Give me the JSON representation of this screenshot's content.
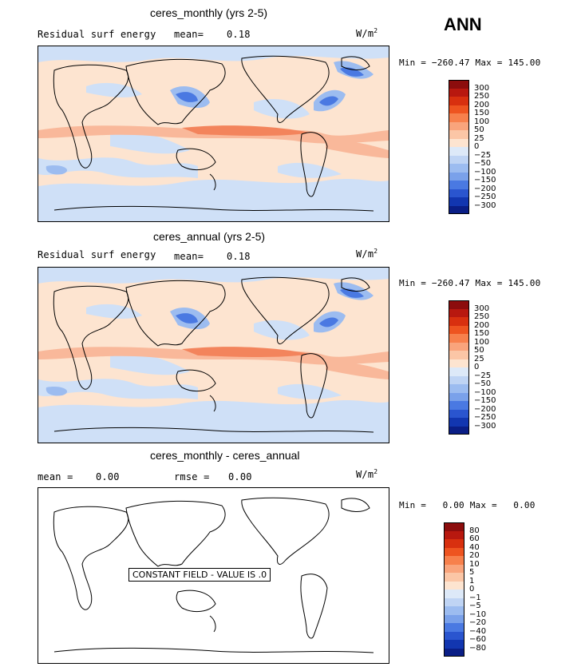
{
  "season": "ANN",
  "panels": [
    {
      "title": "ceres_monthly (yrs 2-5)",
      "left_label": "Residual surf energy",
      "mean_label": "mean=",
      "mean_value": "0.18",
      "units_base": "W/m",
      "units_exp": "2",
      "minmax": "Min = −260.47 Max = 145.00",
      "colorbar_labels": [
        "300",
        "250",
        "200",
        "150",
        "100",
        "50",
        "25",
        "0",
        "−25",
        "−50",
        "−100",
        "−150",
        "−200",
        "−250",
        "−300"
      ],
      "colorbar_colors": [
        "#8c0d0d",
        "#b8180f",
        "#d8300f",
        "#ee5420",
        "#f7804c",
        "#f9a47c",
        "#fbc6a6",
        "#fde4d0",
        "#dde9f8",
        "#bfd4f4",
        "#9cbcf0",
        "#7aa1ea",
        "#4a79e2",
        "#2a55cf",
        "#1236b0",
        "#0a1e86"
      ]
    },
    {
      "title": "ceres_annual (yrs 2-5)",
      "left_label": "Residual surf energy",
      "mean_label": "mean=",
      "mean_value": "0.18",
      "units_base": "W/m",
      "units_exp": "2",
      "minmax": "Min = −260.47 Max = 145.00",
      "colorbar_labels": [
        "300",
        "250",
        "200",
        "150",
        "100",
        "50",
        "25",
        "0",
        "−25",
        "−50",
        "−100",
        "−150",
        "−200",
        "−250",
        "−300"
      ],
      "colorbar_colors": [
        "#8c0d0d",
        "#b8180f",
        "#d8300f",
        "#ee5420",
        "#f7804c",
        "#f9a47c",
        "#fbc6a6",
        "#fde4d0",
        "#dde9f8",
        "#bfd4f4",
        "#9cbcf0",
        "#7aa1ea",
        "#4a79e2",
        "#2a55cf",
        "#1236b0",
        "#0a1e86"
      ]
    },
    {
      "title": "ceres_monthly - ceres_annual",
      "mean_label": "mean =",
      "mean_value": "0.00",
      "rmse_label": "rmse =",
      "rmse_value": "0.00",
      "units_base": "W/m",
      "units_exp": "2",
      "minmax": "Min =   0.00 Max =   0.00",
      "constant_text": "CONSTANT FIELD - VALUE IS .0",
      "colorbar_labels": [
        "80",
        "60",
        "40",
        "20",
        "10",
        "5",
        "1",
        "0",
        "−1",
        "−5",
        "−10",
        "−20",
        "−40",
        "−60",
        "−80"
      ],
      "colorbar_colors": [
        "#8c0d0d",
        "#b8180f",
        "#d8300f",
        "#ee5420",
        "#f7804c",
        "#f9a47c",
        "#fbc6a6",
        "#fde4d0",
        "#dde9f8",
        "#bfd4f4",
        "#9cbcf0",
        "#7aa1ea",
        "#4a79e2",
        "#2a55cf",
        "#1236b0",
        "#0a1e86"
      ]
    }
  ],
  "fill": {
    "background": "#fde4d0",
    "light_blue": "#cfe0f7",
    "mid_blue": "#9cbcf0",
    "deep_blue": "#4a79e2",
    "light_red": "#f9b89a",
    "mid_red": "#f3845c"
  }
}
